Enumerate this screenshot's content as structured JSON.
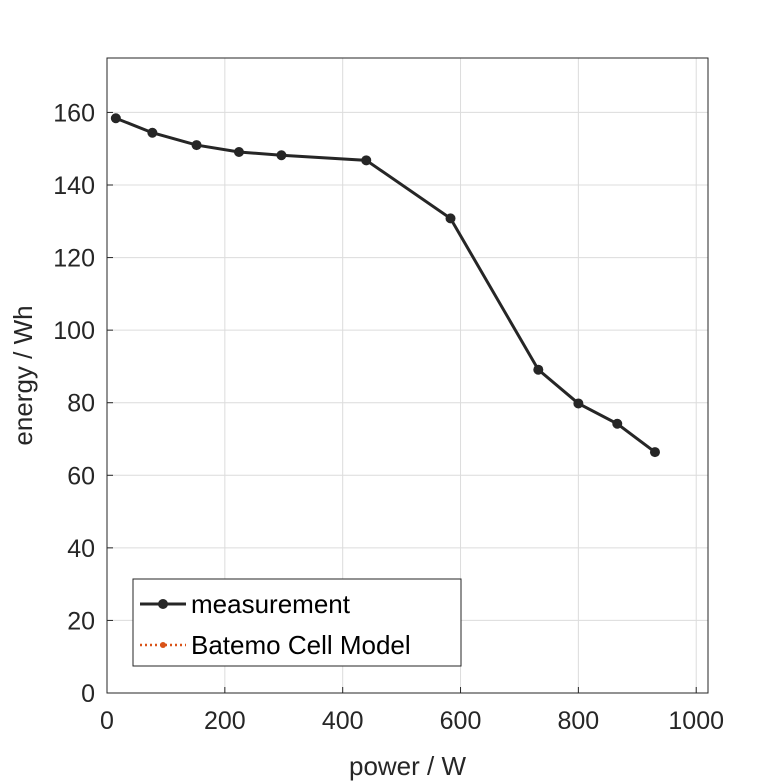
{
  "chart_data": {
    "type": "line",
    "xlabel": "power / W",
    "ylabel": "energy / Wh",
    "xlim": [
      0,
      1020
    ],
    "ylim": [
      0,
      175
    ],
    "xticks": [
      0,
      200,
      400,
      600,
      800,
      1000
    ],
    "yticks": [
      0,
      20,
      40,
      60,
      80,
      100,
      120,
      140,
      160
    ],
    "grid": true,
    "legend_position": "bottom-left",
    "series": [
      {
        "name": "measurement",
        "color": "#262626",
        "style": "solid",
        "marker": "circle",
        "x": [
          15,
          77,
          152,
          224,
          296,
          440,
          583,
          732,
          800,
          866,
          930
        ],
        "y": [
          158.4,
          154.4,
          151,
          149.1,
          148.2,
          146.8,
          130.8,
          89.1,
          79.8,
          74.2,
          66.4
        ]
      },
      {
        "name": "Batemo Cell Model",
        "color": "#D95319",
        "style": "dotted",
        "marker": "dot",
        "x": [],
        "y": []
      }
    ]
  }
}
